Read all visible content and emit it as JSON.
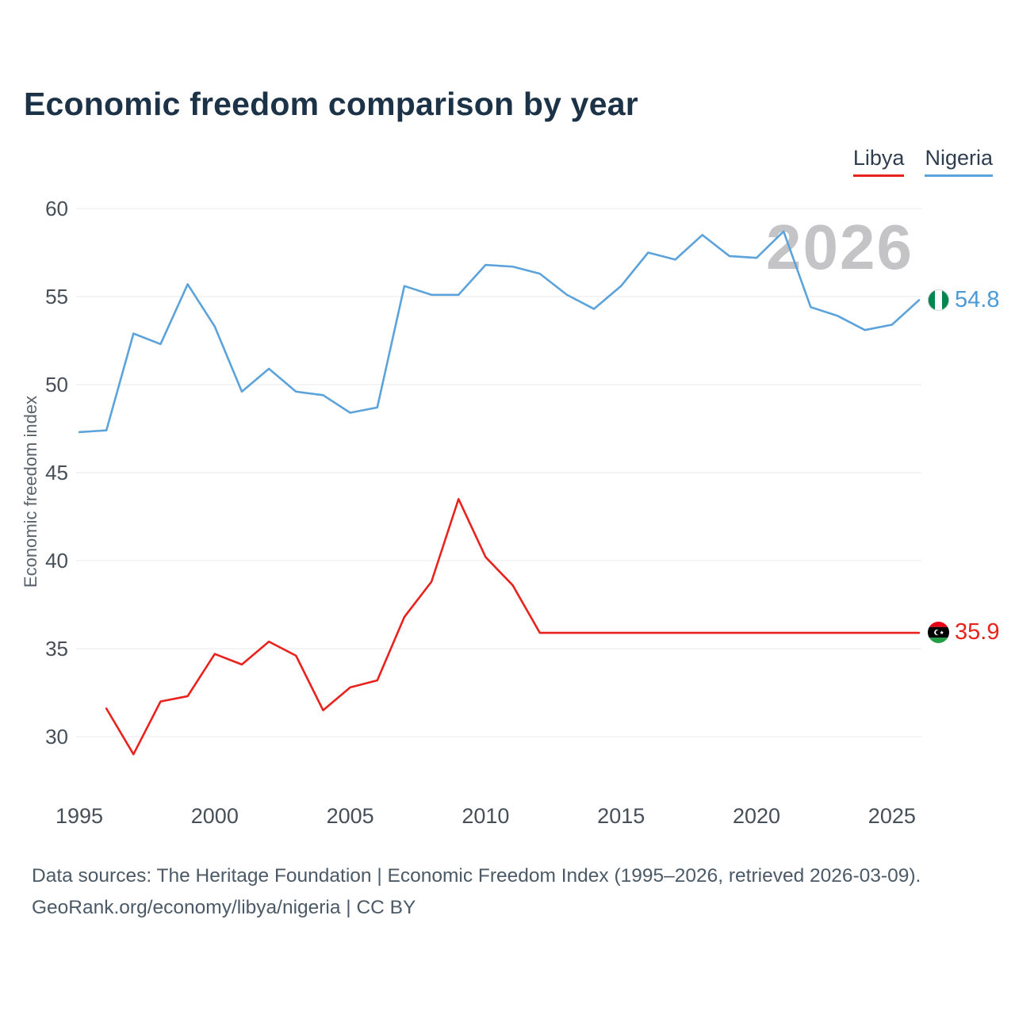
{
  "title": "Economic freedom comparison by year",
  "legend": [
    {
      "label": "Libya",
      "color": "#e8221c"
    },
    {
      "label": "Nigeria",
      "color": "#5ca3db"
    }
  ],
  "watermark": "2026",
  "end_labels": {
    "nigeria": {
      "value": "54.8"
    },
    "libya": {
      "value": "35.9"
    }
  },
  "footer": {
    "line1": "Data sources: The Heritage Foundation | Economic Freedom Index (1995–2026, retrieved 2026-03-09).",
    "line2": "GeoRank.org/economy/libya/nigeria | CC BY"
  },
  "chart_data": {
    "type": "line",
    "title": "Economic freedom comparison by year",
    "xlabel": "",
    "ylabel": "Economic freedom index",
    "ylim": [
      28,
      61
    ],
    "yticks": [
      30,
      35,
      40,
      45,
      50,
      55,
      60
    ],
    "xticks": [
      1995,
      2000,
      2005,
      2010,
      2015,
      2020,
      2025
    ],
    "grid": "horizontal",
    "legend_position": "top-right",
    "series": [
      {
        "name": "Nigeria",
        "color": "#5ca3db",
        "x": [
          1995,
          1996,
          1997,
          1998,
          1999,
          2000,
          2001,
          2002,
          2003,
          2004,
          2005,
          2006,
          2007,
          2008,
          2009,
          2010,
          2011,
          2012,
          2013,
          2014,
          2015,
          2016,
          2017,
          2018,
          2019,
          2020,
          2021,
          2022,
          2023,
          2024,
          2025,
          2026
        ],
        "values": [
          47.3,
          47.4,
          52.9,
          52.3,
          55.7,
          53.3,
          49.6,
          50.9,
          49.6,
          49.4,
          48.4,
          48.7,
          55.6,
          55.1,
          55.1,
          56.8,
          56.7,
          56.3,
          55.1,
          54.3,
          55.6,
          57.5,
          57.1,
          58.5,
          57.3,
          57.2,
          58.7,
          54.4,
          53.9,
          53.1,
          53.4,
          54.8
        ]
      },
      {
        "name": "Libya",
        "color": "#e8221c",
        "x": [
          1996,
          1997,
          1998,
          1999,
          2000,
          2001,
          2002,
          2003,
          2004,
          2005,
          2006,
          2007,
          2008,
          2009,
          2010,
          2011,
          2012,
          2013,
          2014,
          2015,
          2016,
          2017,
          2018,
          2019,
          2020,
          2021,
          2022,
          2023,
          2024,
          2025,
          2026
        ],
        "values": [
          31.6,
          29.0,
          32.0,
          32.3,
          34.7,
          34.1,
          35.4,
          34.6,
          31.5,
          32.8,
          33.2,
          36.8,
          38.8,
          43.5,
          40.2,
          38.6,
          35.9,
          35.9,
          35.9,
          35.9,
          35.9,
          35.9,
          35.9,
          35.9,
          35.9,
          35.9,
          35.9,
          35.9,
          35.9,
          35.9,
          35.9
        ]
      }
    ]
  }
}
